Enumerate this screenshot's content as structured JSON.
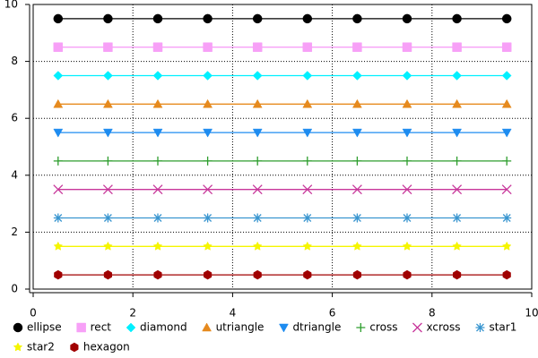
{
  "chart_data": {
    "type": "line",
    "x": [
      0.5,
      1.5,
      2.5,
      3.5,
      4.5,
      5.5,
      6.5,
      7.5,
      8.5,
      9.5
    ],
    "series": [
      {
        "name": "ellipse",
        "color": "#000000",
        "values": [
          9.5,
          9.5,
          9.5,
          9.5,
          9.5,
          9.5,
          9.5,
          9.5,
          9.5,
          9.5
        ]
      },
      {
        "name": "rect",
        "color": "#f7a0f7",
        "values": [
          8.5,
          8.5,
          8.5,
          8.5,
          8.5,
          8.5,
          8.5,
          8.5,
          8.5,
          8.5
        ]
      },
      {
        "name": "diamond",
        "color": "#00f0ff",
        "values": [
          7.5,
          7.5,
          7.5,
          7.5,
          7.5,
          7.5,
          7.5,
          7.5,
          7.5,
          7.5
        ]
      },
      {
        "name": "utriangle",
        "color": "#e68a1e",
        "values": [
          6.5,
          6.5,
          6.5,
          6.5,
          6.5,
          6.5,
          6.5,
          6.5,
          6.5,
          6.5
        ]
      },
      {
        "name": "dtriangle",
        "color": "#1e8cf0",
        "values": [
          5.5,
          5.5,
          5.5,
          5.5,
          5.5,
          5.5,
          5.5,
          5.5,
          5.5,
          5.5
        ]
      },
      {
        "name": "cross",
        "color": "#2e9e2e",
        "values": [
          4.5,
          4.5,
          4.5,
          4.5,
          4.5,
          4.5,
          4.5,
          4.5,
          4.5,
          4.5
        ]
      },
      {
        "name": "xcross",
        "color": "#c8369a",
        "values": [
          3.5,
          3.5,
          3.5,
          3.5,
          3.5,
          3.5,
          3.5,
          3.5,
          3.5,
          3.5
        ]
      },
      {
        "name": "star1",
        "color": "#3a96d0",
        "values": [
          2.5,
          2.5,
          2.5,
          2.5,
          2.5,
          2.5,
          2.5,
          2.5,
          2.5,
          2.5
        ]
      },
      {
        "name": "star2",
        "color": "#f5f500",
        "values": [
          1.5,
          1.5,
          1.5,
          1.5,
          1.5,
          1.5,
          1.5,
          1.5,
          1.5,
          1.5
        ]
      },
      {
        "name": "hexagon",
        "color": "#a00000",
        "values": [
          0.5,
          0.5,
          0.5,
          0.5,
          0.5,
          0.5,
          0.5,
          0.5,
          0.5,
          0.5
        ]
      }
    ],
    "xlim": [
      0,
      10
    ],
    "ylim": [
      0,
      10
    ],
    "xticks": [
      0,
      2,
      4,
      6,
      8,
      10
    ],
    "yticks": [
      0,
      2,
      4,
      6,
      8,
      10
    ],
    "grid": true,
    "legend": "bottom"
  }
}
